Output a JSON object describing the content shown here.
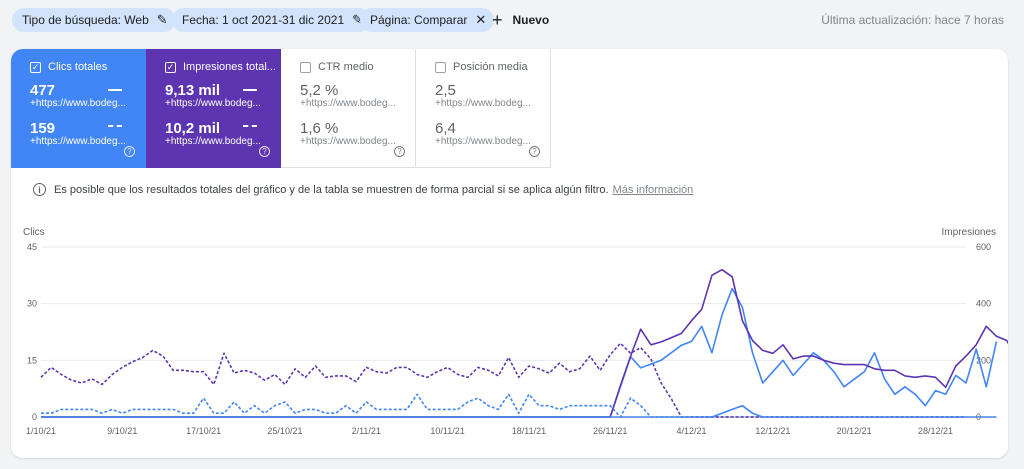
{
  "filters": [
    {
      "label": "Tipo de búsqueda: Web",
      "icon": "pencil-icon"
    },
    {
      "label": "Fecha: 1 oct 2021-31 dic 2021",
      "icon": "pencil-icon"
    },
    {
      "label": "Página: Comparar",
      "icon": "close-icon"
    }
  ],
  "new_label": "Nuevo",
  "last_update": "Última actualización: hace 7 horas",
  "metrics": [
    {
      "title": "Clics totales",
      "checked": true,
      "v1": "477",
      "v2": "159",
      "sub": "+https://www.bodeg...",
      "color": "#4285f4"
    },
    {
      "title": "Impresiones total...",
      "checked": true,
      "v1": "9,13 mil",
      "v2": "10,2 mil",
      "sub": "+https://www.bodeg...",
      "color": "#5e35b1"
    },
    {
      "title": "CTR medio",
      "checked": false,
      "v1": "5,2 %",
      "v2": "1,6 %",
      "sub": "+https://www.bodeg..."
    },
    {
      "title": "Posición media",
      "checked": false,
      "v1": "2,5",
      "v2": "6,4",
      "sub": "+https://www.bodeg..."
    }
  ],
  "info": {
    "text": "Es posible que los resultados totales del gráfico y de la tabla se muestren de forma parcial si se aplica algún filtro.",
    "link": "Más información"
  },
  "chart_data": {
    "type": "line",
    "xlabel": "",
    "ylabel": "Clics",
    "y2label": "Impresiones",
    "ylim": [
      0,
      45
    ],
    "y2lim": [
      0,
      600
    ],
    "yticks": [
      0,
      15,
      30,
      45
    ],
    "y2ticks": [
      0,
      200,
      400,
      600
    ],
    "x_tick_labels": [
      "1/10/21",
      "9/10/21",
      "17/10/21",
      "25/10/21",
      "2/11/21",
      "10/11/21",
      "18/11/21",
      "26/11/21",
      "4/12/21",
      "12/12/21",
      "20/12/21",
      "28/12/21"
    ],
    "x_tick_index": [
      0,
      8,
      16,
      24,
      32,
      40,
      48,
      56,
      64,
      72,
      80,
      88
    ],
    "grid": true,
    "legend": "none",
    "series": [
      {
        "axis": "y",
        "style": "dashed",
        "color": "#4285f4",
        "values": [
          1,
          1,
          2,
          2,
          2,
          2,
          1,
          2,
          1,
          2,
          2,
          2,
          2,
          2,
          1,
          1,
          5,
          1,
          1,
          4,
          1,
          3,
          1,
          3,
          4,
          1,
          2,
          2,
          1,
          1,
          3,
          1,
          4,
          2,
          2,
          2,
          2,
          6,
          2,
          2,
          2,
          2,
          4,
          5,
          3,
          2,
          6,
          1,
          6,
          3,
          3,
          2,
          3,
          3,
          3,
          3,
          3,
          0,
          5,
          3,
          0,
          0,
          0,
          0,
          0,
          0,
          0,
          0,
          0,
          0,
          0,
          0,
          0,
          0,
          0,
          0,
          0,
          0,
          0,
          0,
          0,
          0,
          0,
          0,
          0,
          0,
          0,
          0,
          0,
          0,
          0,
          0
        ]
      },
      {
        "axis": "y2",
        "style": "dashed",
        "color": "#5e35b1",
        "values": [
          140,
          175,
          150,
          130,
          120,
          135,
          115,
          150,
          175,
          195,
          210,
          235,
          215,
          165,
          165,
          160,
          160,
          115,
          225,
          155,
          165,
          155,
          130,
          150,
          115,
          170,
          140,
          180,
          140,
          145,
          145,
          125,
          175,
          160,
          155,
          175,
          175,
          150,
          140,
          160,
          175,
          150,
          140,
          175,
          165,
          145,
          210,
          140,
          180,
          170,
          155,
          190,
          160,
          170,
          215,
          165,
          220,
          260,
          225,
          245,
          205,
          120,
          65,
          0,
          0,
          0,
          0,
          0,
          0,
          0,
          0,
          0,
          0,
          0,
          0,
          0,
          0,
          0,
          0,
          0,
          0,
          0,
          0,
          0,
          0,
          0,
          0,
          0,
          0,
          0,
          0,
          0
        ]
      },
      {
        "axis": "y",
        "style": "solid",
        "color": "#4285f4",
        "values": [
          0,
          0,
          0,
          0,
          0,
          0,
          0,
          0,
          0,
          0,
          0,
          0,
          0,
          0,
          0,
          0,
          0,
          0,
          0,
          0,
          0,
          0,
          0,
          0,
          0,
          0,
          0,
          0,
          0,
          0,
          0,
          0,
          0,
          0,
          0,
          0,
          0,
          0,
          0,
          0,
          0,
          0,
          0,
          0,
          0,
          0,
          0,
          0,
          0,
          0,
          0,
          0,
          0,
          0,
          0,
          0,
          0,
          8,
          16,
          13,
          14,
          15,
          17,
          19,
          20,
          24,
          17,
          27,
          34,
          29,
          17,
          9,
          12,
          15,
          11,
          14,
          17,
          15,
          12,
          8,
          10,
          12,
          17,
          10,
          6,
          8,
          6,
          3,
          7,
          6,
          11,
          9,
          18,
          8,
          20
        ]
      },
      {
        "axis": "y2",
        "style": "solid",
        "color": "#5e35b1",
        "values": [
          0,
          0,
          0,
          0,
          0,
          0,
          0,
          0,
          0,
          0,
          0,
          0,
          0,
          0,
          0,
          0,
          0,
          0,
          0,
          0,
          0,
          0,
          0,
          0,
          0,
          0,
          0,
          0,
          0,
          0,
          0,
          0,
          0,
          0,
          0,
          0,
          0,
          0,
          0,
          0,
          0,
          0,
          0,
          0,
          0,
          0,
          0,
          0,
          0,
          0,
          0,
          0,
          0,
          0,
          0,
          0,
          0,
          110,
          215,
          310,
          255,
          265,
          280,
          295,
          340,
          380,
          500,
          520,
          495,
          340,
          270,
          235,
          225,
          255,
          205,
          215,
          215,
          200,
          190,
          185,
          185,
          185,
          170,
          165,
          165,
          145,
          140,
          145,
          140,
          105,
          180,
          215,
          255,
          320,
          285,
          270,
          210
        ]
      },
      {
        "axis": "y",
        "style": "solid-small",
        "color": "#4285f4",
        "values": [
          0,
          0,
          0,
          0,
          0,
          0,
          0,
          0,
          0,
          0,
          0,
          0,
          0,
          0,
          0,
          0,
          0,
          0,
          0,
          0,
          0,
          0,
          0,
          0,
          0,
          0,
          0,
          0,
          0,
          0,
          0,
          0,
          0,
          0,
          0,
          0,
          0,
          0,
          0,
          0,
          0,
          0,
          0,
          0,
          0,
          0,
          0,
          0,
          0,
          0,
          0,
          0,
          0,
          0,
          0,
          0,
          0,
          0,
          0,
          0,
          0,
          0,
          0,
          0,
          0,
          0,
          0,
          1,
          2,
          3,
          1,
          0,
          0,
          0,
          0,
          0,
          0,
          0,
          0,
          0,
          0,
          0,
          0,
          0,
          0,
          0,
          0,
          0,
          0,
          0,
          0,
          0,
          0,
          0,
          0
        ]
      }
    ]
  }
}
